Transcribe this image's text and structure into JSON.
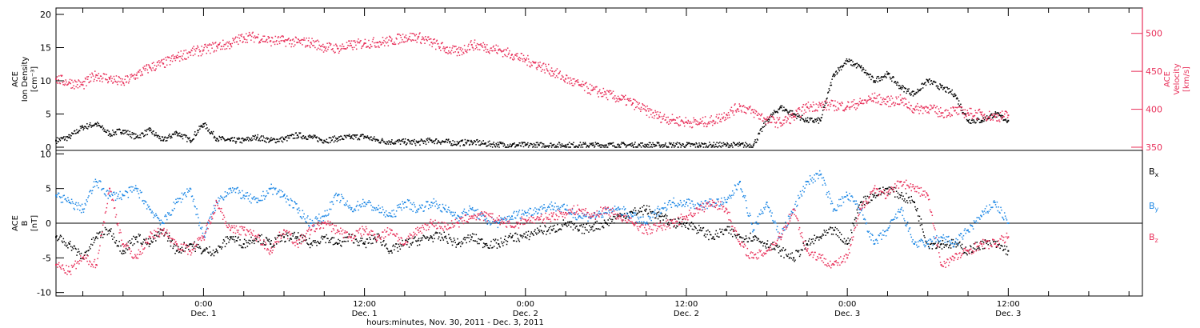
{
  "colors": {
    "black": "#000000",
    "pink": "#e8305a",
    "blue": "#1e88e5"
  },
  "xaxis": {
    "ticks": [
      {
        "t": 26,
        "l1": "0:00",
        "l2": "Dec. 1"
      },
      {
        "t": 38,
        "l1": "12:00",
        "l2": "Dec. 1"
      },
      {
        "t": 50,
        "l1": "0:00",
        "l2": "Dec. 2"
      },
      {
        "t": 62,
        "l1": "12:00",
        "l2": "Dec. 2"
      },
      {
        "t": 74,
        "l1": "0:00",
        "l2": "Dec. 3"
      },
      {
        "t": 86,
        "l1": "12:00",
        "l2": "Dec. 3"
      }
    ],
    "label": "hours:minutes, Nov. 30, 2011 - Dec. 3, 2011",
    "range": [
      15,
      96
    ]
  },
  "chart_data": [
    {
      "type": "scatter",
      "panel": "top",
      "ylabel_left": [
        "ACE",
        "Ion Density",
        "[cm⁻³]"
      ],
      "ylabel_right": [
        "ACE",
        "Velocity",
        "[km/s]"
      ],
      "ylim_left": [
        0,
        20
      ],
      "yticks_left": [
        0,
        5,
        10,
        15,
        20
      ],
      "ylim_right": [
        350,
        525
      ],
      "yticks_right": [
        350,
        400,
        450,
        500
      ],
      "series": [
        {
          "axis": "left",
          "color": "black",
          "x": [
            15,
            16,
            17,
            18,
            19,
            20,
            21,
            22,
            23,
            24,
            25,
            26,
            27,
            28,
            29,
            30,
            31,
            32,
            33,
            34,
            35,
            36,
            37,
            38,
            39,
            40,
            41,
            42,
            43,
            44,
            45,
            46,
            47,
            48,
            49,
            50,
            51,
            52,
            53,
            54,
            55,
            56,
            57,
            58,
            59,
            60,
            61,
            62,
            63,
            64,
            65,
            66,
            67,
            68,
            69,
            70,
            71,
            72,
            73,
            74,
            75,
            76,
            77,
            78,
            79,
            80,
            81,
            82,
            83,
            84,
            85,
            86
          ],
          "y": [
            1,
            1.5,
            3,
            3.5,
            2,
            2.5,
            1.5,
            2.5,
            1,
            2.2,
            1,
            3.5,
            1.3,
            1,
            1,
            1.5,
            1,
            1.2,
            1.8,
            1.5,
            1,
            1.3,
            1.5,
            1.6,
            1,
            0.8,
            0.8,
            0.7,
            1,
            0.8,
            0.6,
            0.8,
            0.5,
            0.4,
            0.3,
            0.3,
            0.3,
            0.3,
            0.3,
            0.3,
            0.3,
            0.3,
            0.3,
            0.3,
            0.3,
            0.3,
            0.3,
            0.3,
            0.3,
            0.3,
            0.3,
            0.3,
            0.3,
            4,
            6,
            5,
            4,
            4,
            11,
            13,
            12,
            10,
            11,
            9,
            8,
            10,
            9,
            8,
            4,
            4,
            5,
            4
          ]
        },
        {
          "axis": "right",
          "color": "pink",
          "x": [
            15,
            16,
            17,
            18,
            19,
            20,
            21,
            22,
            23,
            24,
            25,
            26,
            27,
            28,
            29,
            30,
            31,
            32,
            33,
            34,
            35,
            36,
            37,
            38,
            39,
            40,
            41,
            42,
            43,
            44,
            45,
            46,
            47,
            48,
            49,
            50,
            51,
            52,
            53,
            54,
            55,
            56,
            57,
            58,
            59,
            60,
            61,
            62,
            63,
            64,
            65,
            66,
            67,
            68,
            69,
            70,
            71,
            72,
            73,
            74,
            75,
            76,
            77,
            78,
            79,
            80,
            81,
            82,
            83,
            84,
            85,
            86
          ],
          "y": [
            440,
            435,
            432,
            445,
            440,
            435,
            445,
            455,
            460,
            468,
            475,
            478,
            483,
            486,
            495,
            495,
            490,
            490,
            488,
            488,
            482,
            480,
            484,
            487,
            488,
            490,
            495,
            495,
            488,
            480,
            475,
            485,
            482,
            478,
            472,
            465,
            458,
            450,
            440,
            432,
            425,
            420,
            414,
            408,
            398,
            390,
            386,
            383,
            382,
            385,
            393,
            404,
            396,
            386,
            382,
            390,
            403,
            405,
            405,
            404,
            408,
            415,
            410,
            412,
            400,
            402,
            395,
            398,
            395,
            393,
            390,
            392
          ]
        }
      ]
    },
    {
      "type": "scatter",
      "panel": "bottom",
      "ylabel_left": [
        "ACE",
        "B",
        "[nT]"
      ],
      "ylim": [
        -10.5,
        10.5
      ],
      "yticks": [
        -10,
        -5,
        0,
        5,
        10
      ],
      "zero_line": true,
      "legend": [
        "B",
        "B",
        "B"
      ],
      "legend_sub": [
        "x",
        "y",
        "z"
      ],
      "series": [
        {
          "color": "black",
          "x": [
            15,
            16,
            17,
            18,
            19,
            20,
            21,
            22,
            23,
            24,
            25,
            26,
            27,
            28,
            29,
            30,
            31,
            32,
            33,
            34,
            35,
            36,
            37,
            38,
            39,
            40,
            41,
            42,
            43,
            44,
            45,
            46,
            47,
            48,
            49,
            50,
            51,
            52,
            53,
            54,
            55,
            56,
            57,
            58,
            59,
            60,
            61,
            62,
            63,
            64,
            65,
            66,
            67,
            68,
            69,
            70,
            71,
            72,
            73,
            74,
            75,
            76,
            77,
            78,
            79,
            80,
            81,
            82,
            83,
            84,
            85,
            86
          ],
          "y": [
            -2,
            -3,
            -5,
            -2,
            -1,
            -4,
            -2,
            -3,
            -1,
            -4,
            -3,
            -4,
            -4,
            -2,
            -3,
            -2,
            -3,
            -2,
            -2,
            -3,
            -2,
            -3,
            -2,
            -3,
            -2,
            -4,
            -3,
            -2.5,
            -2,
            -2,
            -3,
            -2,
            -3,
            -3,
            -2,
            -2,
            -1,
            -1,
            0,
            -1,
            -0.5,
            0,
            1,
            1.5,
            2,
            1,
            0,
            0,
            -1,
            -2,
            -1,
            -2,
            -2,
            -3,
            -4,
            -5,
            -3,
            -2,
            -1,
            -3,
            3,
            4,
            5,
            4,
            3,
            -3,
            -3,
            -3,
            -4,
            -3,
            -3,
            -4
          ]
        },
        {
          "color": "blue",
          "x": [
            15,
            16,
            17,
            18,
            19,
            20,
            21,
            22,
            23,
            24,
            25,
            26,
            27,
            28,
            29,
            30,
            31,
            32,
            33,
            34,
            35,
            36,
            37,
            38,
            39,
            40,
            41,
            42,
            43,
            44,
            45,
            46,
            47,
            48,
            49,
            50,
            51,
            52,
            53,
            54,
            55,
            56,
            57,
            58,
            59,
            60,
            61,
            62,
            63,
            64,
            65,
            66,
            67,
            68,
            69,
            70,
            71,
            72,
            73,
            74,
            75,
            76,
            77,
            78,
            79,
            80,
            81,
            82,
            83,
            84,
            85,
            86
          ],
          "y": [
            4,
            3,
            2,
            6,
            4,
            4,
            5,
            2,
            0,
            3,
            5,
            -2,
            3,
            5,
            4,
            3,
            5,
            4,
            2,
            0,
            1,
            4,
            2,
            3,
            2,
            1,
            3,
            2,
            3,
            2,
            1,
            2,
            0.5,
            0,
            1,
            1.5,
            2,
            2.5,
            2,
            1,
            1,
            1.5,
            2,
            1,
            0,
            2,
            3,
            3,
            2.5,
            3,
            3,
            6,
            -1,
            3,
            -2,
            2,
            6,
            7,
            2,
            4,
            2,
            -3,
            -1,
            2,
            -3,
            -3,
            -2,
            -3,
            -1,
            1,
            3,
            0
          ]
        },
        {
          "color": "pink",
          "x": [
            15,
            16,
            17,
            18,
            19,
            20,
            21,
            22,
            23,
            24,
            25,
            26,
            27,
            28,
            29,
            30,
            31,
            32,
            33,
            34,
            35,
            36,
            37,
            38,
            39,
            40,
            41,
            42,
            43,
            44,
            45,
            46,
            47,
            48,
            49,
            50,
            51,
            52,
            53,
            54,
            55,
            56,
            57,
            58,
            59,
            60,
            61,
            62,
            63,
            64,
            65,
            66,
            67,
            68,
            69,
            70,
            71,
            72,
            73,
            74,
            75,
            76,
            77,
            78,
            79,
            80,
            81,
            82,
            83,
            84,
            85,
            86
          ],
          "y": [
            -6,
            -7,
            -5,
            -6,
            5,
            -3,
            -5,
            -2,
            -1,
            -3,
            -4,
            -2,
            3,
            -1,
            -1,
            -2,
            -4,
            -1,
            -3,
            -1,
            0,
            -1,
            -2,
            -1,
            -2,
            -1,
            -3,
            -1,
            0,
            -0.5,
            0,
            1,
            1,
            0.5,
            -0.5,
            0.5,
            0.5,
            1,
            1.5,
            2,
            1,
            2,
            1,
            0,
            -1,
            -0.5,
            0,
            1,
            2,
            3,
            2,
            -3,
            -5,
            -4,
            -2,
            2,
            -4,
            -5,
            -6,
            -5,
            2,
            5,
            4,
            6,
            5,
            4,
            -6,
            -5,
            -4,
            -3,
            -3,
            -2
          ]
        }
      ]
    }
  ]
}
